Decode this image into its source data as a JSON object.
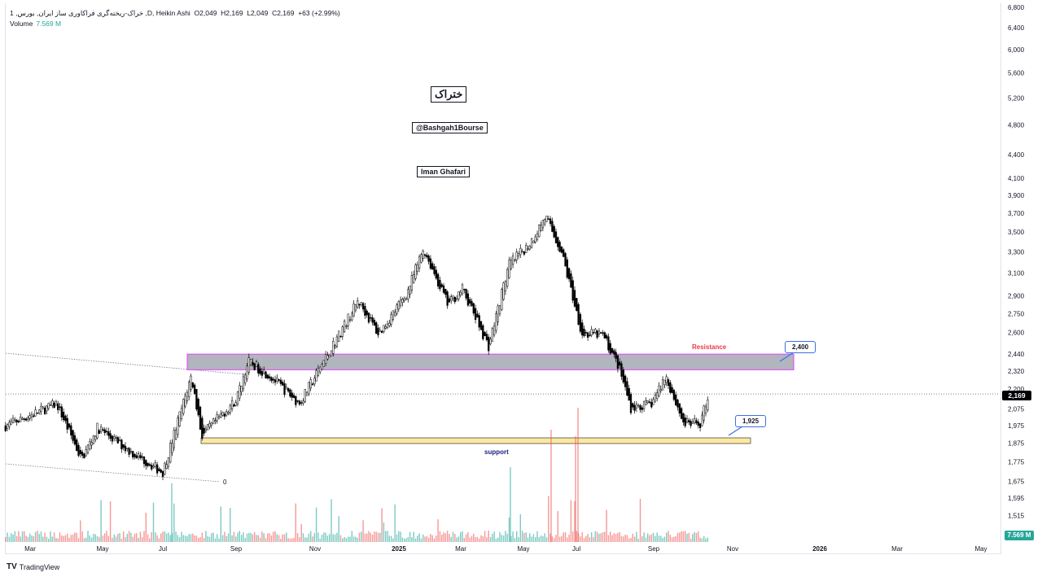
{
  "legend": {
    "symbol_line": "1 ,خراک-ریخته‌گری فراکاوری ساز ایران, بورس ,D, Heikin Ashi",
    "open": "O2,049",
    "high": "H2,169",
    "low": "L2,049",
    "close": "C2,169",
    "change": "+63 (+2.99%)",
    "volume_label": "Volume",
    "volume_value": "7.569 M"
  },
  "annotations": {
    "title_box": "ختراک",
    "channel_box": "@Bashgah1Bourse",
    "author_box": "Iman Ghafari",
    "resistance_label": "Resistance",
    "support_label": "support",
    "resistance_callout": "2,400",
    "support_callout": "1,925",
    "trendline_label": "0"
  },
  "colors": {
    "resistance_fill": "#b2b5be",
    "resistance_border": "#e040fb",
    "support_fill": "#fbe8a0",
    "volume_up": "#26a69a",
    "volume_down": "#ef5350",
    "callout_border": "#3d6fe5"
  },
  "price_badge": "2,169",
  "volume_badge": "7.569 M",
  "x_axis": [
    "Mar",
    "May",
    "Jul",
    "Sep",
    "Nov",
    "2025",
    "Mar",
    "May",
    "Jul",
    "Sep",
    "Nov",
    "2026",
    "Mar",
    "May"
  ],
  "footer": {
    "brand": "TradingView"
  },
  "chart_data": {
    "type": "candlestick",
    "scale": "log",
    "y_ticks": [
      6800,
      6400,
      6000,
      5600,
      5200,
      4800,
      4400,
      4100,
      3900,
      3700,
      3500,
      3300,
      3100,
      2900,
      2750,
      2600,
      2440,
      2320,
      2200,
      2075,
      1975,
      1875,
      1775,
      1675,
      1595,
      1515
    ],
    "y_tick_labels": [
      "6,800",
      "6,400",
      "6,000",
      "5,600",
      "5,200",
      "4,800",
      "4,400",
      "4,100",
      "3,900",
      "3,700",
      "3,500",
      "3,300",
      "3,100",
      "2,900",
      "2,750",
      "2,600",
      "2,440",
      "2,320",
      "2,200",
      "2,075",
      "1,975",
      "1,875",
      "1,775",
      "1,675",
      "1,595",
      "1,515"
    ],
    "x_unit": "months since Feb 2024",
    "pivots": [
      [
        0.8,
        1975
      ],
      [
        2.17,
        2108
      ],
      [
        2.83,
        1787
      ],
      [
        3.26,
        1965
      ],
      [
        4.13,
        1830
      ],
      [
        5.0,
        1722
      ],
      [
        5.76,
        2289
      ],
      [
        6.04,
        1918
      ],
      [
        6.96,
        2134
      ],
      [
        7.28,
        2387
      ],
      [
        7.83,
        2294
      ],
      [
        8.65,
        2108
      ],
      [
        9.35,
        2416
      ],
      [
        10.22,
        2858
      ],
      [
        10.76,
        2588
      ],
      [
        11.52,
        2923
      ],
      [
        11.96,
        3335
      ],
      [
        12.61,
        2825
      ],
      [
        13.0,
        2959
      ],
      [
        13.7,
        2498
      ],
      [
        14.24,
        3178
      ],
      [
        14.78,
        3373
      ],
      [
        15.22,
        3668
      ],
      [
        15.65,
        3295
      ],
      [
        16.2,
        2588
      ],
      [
        16.74,
        2588
      ],
      [
        17.17,
        2355
      ],
      [
        17.5,
        2083
      ],
      [
        18.04,
        2105
      ],
      [
        18.43,
        2289
      ],
      [
        18.91,
        1988
      ],
      [
        19.35,
        1988
      ],
      [
        19.57,
        2169
      ]
    ],
    "last_close": 2169,
    "resistance_zone": [
      2330,
      2440
    ],
    "support_zone": [
      1890,
      1925
    ]
  }
}
